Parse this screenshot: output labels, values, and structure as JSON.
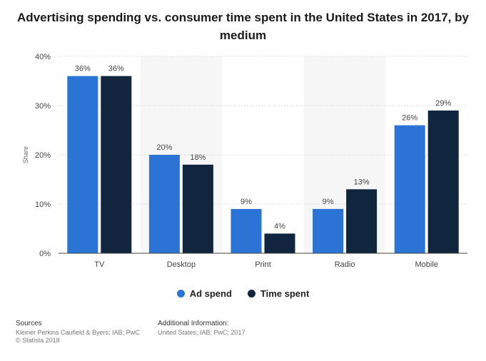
{
  "chart_data": {
    "type": "bar",
    "title": "Advertising spending vs. consumer time spent in the United States in 2017, by medium",
    "ylabel": "Share",
    "xlabel": "",
    "ylim": [
      0,
      40
    ],
    "yticks": [
      "0%",
      "10%",
      "20%",
      "30%",
      "40%"
    ],
    "grid": true,
    "legend_position": "bottom",
    "categories": [
      "TV",
      "Desktop",
      "Print",
      "Radio",
      "Mobile"
    ],
    "series": [
      {
        "name": "Ad spend",
        "values": [
          36,
          20,
          9,
          9,
          26
        ],
        "labels": [
          "36%",
          "20%",
          "9%",
          "9%",
          "26%"
        ],
        "color": "#2b74d6"
      },
      {
        "name": "Time spent",
        "values": [
          36,
          18,
          4,
          13,
          29
        ],
        "labels": [
          "36%",
          "18%",
          "4%",
          "13%",
          "29%"
        ],
        "color": "#11263e"
      }
    ]
  },
  "footer": {
    "sources_heading": "Sources",
    "sources_line1": "Kleiner Perkins Caufield & Byers; IAB; PwC",
    "sources_line2": "© Statista 2018",
    "additional_heading": "Additional Information:",
    "additional_line1": "United States; IAB; PwC; 2017"
  }
}
